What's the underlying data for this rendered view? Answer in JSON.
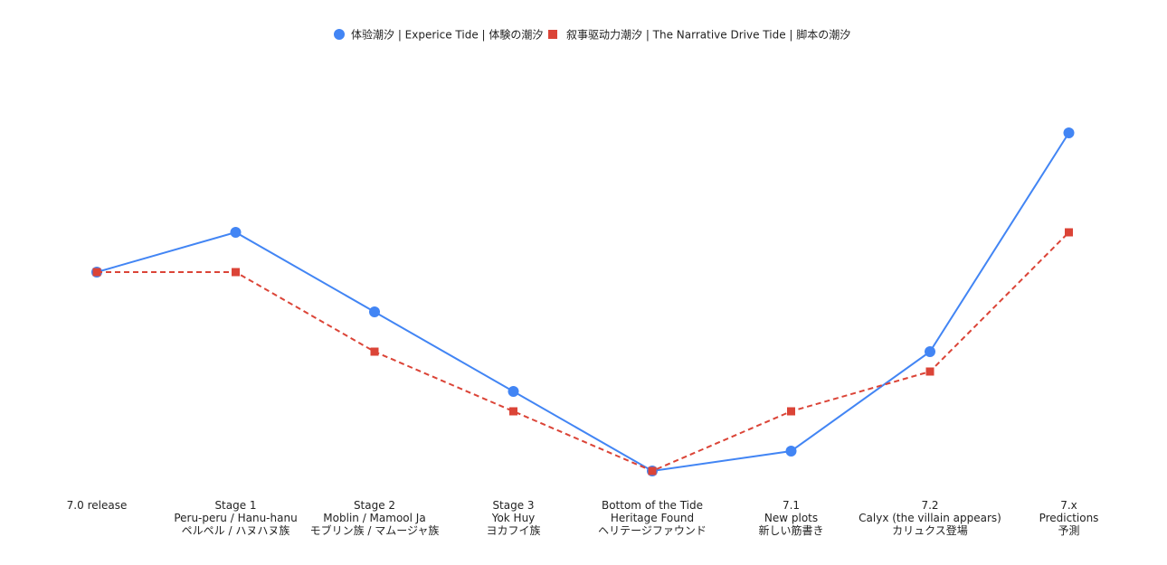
{
  "colors": {
    "series_1": "#4285F4",
    "series_2": "#DB4437"
  },
  "chart_data": {
    "type": "line",
    "title": "",
    "xlabel": "",
    "ylabel": "",
    "grid": false,
    "legend_position": "top",
    "categories": [
      [
        "7.0 release"
      ],
      [
        "Stage 1",
        "Peru-peru / Hanu-hanu",
        "ペルペル / ハヌハヌ族"
      ],
      [
        "Stage 2",
        "Moblin / Mamool Ja",
        "モブリン族 / マムージャ族"
      ],
      [
        "Stage 3",
        "Yok Huy",
        "ヨカフイ族"
      ],
      [
        "Bottom of the Tide",
        "Heritage Found",
        "ヘリテージファウンド"
      ],
      [
        "7.1",
        "New plots",
        "新しい筋書き"
      ],
      [
        "7.2",
        "Calyx (the villain appears)",
        "カリュクス登場"
      ],
      [
        "7.x",
        "Predictions",
        "予測"
      ]
    ],
    "ylim": [
      0,
      10
    ],
    "series": [
      {
        "name": "体验潮汐 | Experice Tide | 体験の潮汐",
        "marker": "circle",
        "line_style": "solid",
        "values": [
          5,
          6,
          4,
          2,
          0,
          0.5,
          3,
          8.5
        ]
      },
      {
        "name": "叙事驱动力潮汐 | The Narrative Drive Tide | 脚本の潮汐",
        "marker": "square",
        "line_style": "dashed",
        "values": [
          5,
          5,
          3,
          1.5,
          0,
          1.5,
          2.5,
          6
        ]
      }
    ]
  }
}
